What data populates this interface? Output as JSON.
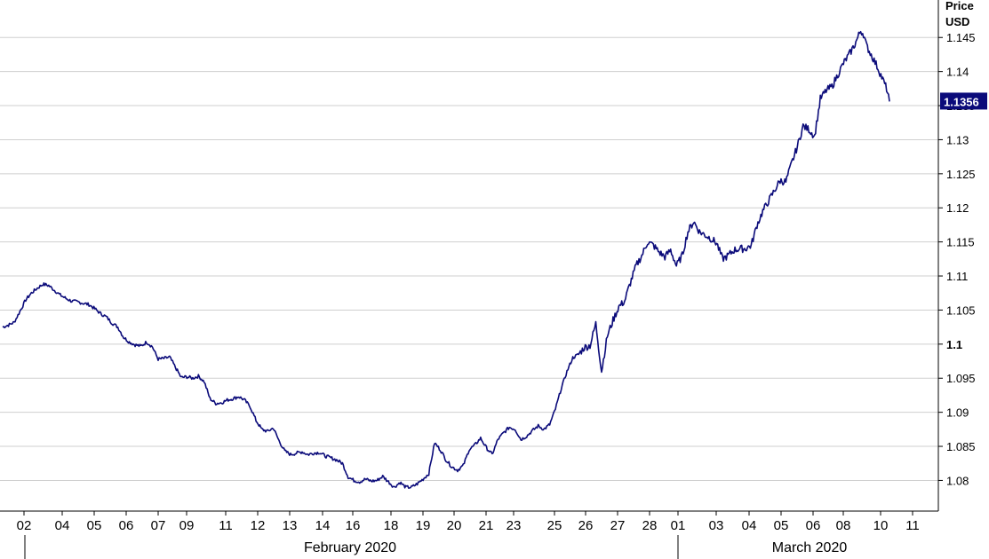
{
  "chart_data": {
    "type": "line",
    "ylabel_line1": "Price",
    "ylabel_line2": "USD",
    "ylim": [
      1.0755,
      1.1505
    ],
    "yticks": [
      {
        "value": 1.08,
        "label": "1.08",
        "bold": false
      },
      {
        "value": 1.085,
        "label": "1.085",
        "bold": false
      },
      {
        "value": 1.09,
        "label": "1.09",
        "bold": false
      },
      {
        "value": 1.095,
        "label": "1.095",
        "bold": false
      },
      {
        "value": 1.1,
        "label": "1.1",
        "bold": true
      },
      {
        "value": 1.105,
        "label": "1.105",
        "bold": false
      },
      {
        "value": 1.11,
        "label": "1.11",
        "bold": false
      },
      {
        "value": 1.115,
        "label": "1.115",
        "bold": false
      },
      {
        "value": 1.12,
        "label": "1.12",
        "bold": false
      },
      {
        "value": 1.125,
        "label": "1.125",
        "bold": false
      },
      {
        "value": 1.13,
        "label": "1.13",
        "bold": false
      },
      {
        "value": 1.135,
        "label": "1.135",
        "bold": false
      },
      {
        "value": 1.14,
        "label": "1.14",
        "bold": false
      },
      {
        "value": 1.145,
        "label": "1.145",
        "bold": false
      }
    ],
    "x_tick_labels": [
      "02",
      "04",
      "05",
      "06",
      "07",
      "09",
      "11",
      "12",
      "13",
      "14",
      "16",
      "18",
      "19",
      "20",
      "21",
      "23",
      "25",
      "26",
      "27",
      "28",
      "01",
      "03",
      "04",
      "05",
      "06",
      "08",
      "10",
      "11"
    ],
    "month_labels": [
      "February 2020",
      "March 2020"
    ],
    "last_value_label": "1.1356",
    "grid": true,
    "line_color": "#0b0b7a",
    "series": [
      {
        "values": [
          [
            0,
            1.1025
          ],
          [
            2,
            1.1028
          ],
          [
            4,
            1.1032
          ],
          [
            6,
            1.1048
          ],
          [
            8,
            1.1065
          ],
          [
            10,
            1.1075
          ],
          [
            12,
            1.1082
          ],
          [
            14,
            1.1088
          ],
          [
            16,
            1.1086
          ],
          [
            18,
            1.1079
          ],
          [
            20,
            1.1072
          ],
          [
            22,
            1.1067
          ],
          [
            24,
            1.1063
          ],
          [
            26,
            1.1062
          ],
          [
            28,
            1.106
          ],
          [
            30,
            1.1058
          ],
          [
            32,
            1.1052
          ],
          [
            34,
            1.1045
          ],
          [
            36,
            1.104
          ],
          [
            38,
            1.1031
          ],
          [
            40,
            1.1025
          ],
          [
            42,
            1.101
          ],
          [
            44,
            1.1003
          ],
          [
            46,
            1.0999
          ],
          [
            48,
            1.0997
          ],
          [
            50,
            1.1003
          ],
          [
            52,
            1.0996
          ],
          [
            54,
            1.0978
          ],
          [
            56,
            1.0979
          ],
          [
            58,
            1.0981
          ],
          [
            60,
            1.0966
          ],
          [
            62,
            1.0951
          ],
          [
            64,
            1.0952
          ],
          [
            66,
            1.095
          ],
          [
            68,
            1.0953
          ],
          [
            70,
            1.0945
          ],
          [
            72,
            1.092
          ],
          [
            74,
            1.0913
          ],
          [
            76,
            1.0914
          ],
          [
            78,
            1.0918
          ],
          [
            80,
            1.092
          ],
          [
            82,
            1.0923
          ],
          [
            84,
            1.0918
          ],
          [
            86,
            1.0908
          ],
          [
            88,
            1.0888
          ],
          [
            90,
            1.0875
          ],
          [
            92,
            1.0872
          ],
          [
            94,
            1.0877
          ],
          [
            96,
            1.0858
          ],
          [
            98,
            1.0843
          ],
          [
            100,
            1.0838
          ],
          [
            102,
            1.084
          ],
          [
            104,
            1.0842
          ],
          [
            106,
            1.0838
          ],
          [
            108,
            1.084
          ],
          [
            110,
            1.0841
          ],
          [
            112,
            1.0836
          ],
          [
            114,
            1.0833
          ],
          [
            116,
            1.083
          ],
          [
            118,
            1.0825
          ],
          [
            120,
            1.0805
          ],
          [
            122,
            1.08
          ],
          [
            124,
            1.0798
          ],
          [
            126,
            1.0802
          ],
          [
            128,
            1.0799
          ],
          [
            130,
            1.08
          ],
          [
            132,
            1.0806
          ],
          [
            134,
            1.0798
          ],
          [
            136,
            1.079
          ],
          [
            138,
            1.0797
          ],
          [
            140,
            1.079
          ],
          [
            142,
            1.079
          ],
          [
            144,
            1.0795
          ],
          [
            146,
            1.0802
          ],
          [
            148,
            1.081
          ],
          [
            150,
            1.0855
          ],
          [
            152,
            1.0845
          ],
          [
            154,
            1.083
          ],
          [
            156,
            1.082
          ],
          [
            158,
            1.0815
          ],
          [
            160,
            1.0822
          ],
          [
            162,
            1.0845
          ],
          [
            164,
            1.0852
          ],
          [
            166,
            1.0862
          ],
          [
            168,
            1.0848
          ],
          [
            170,
            1.0838
          ],
          [
            172,
            1.086
          ],
          [
            174,
            1.087
          ],
          [
            176,
            1.0878
          ],
          [
            178,
            1.0875
          ],
          [
            180,
            1.086
          ],
          [
            182,
            1.0865
          ],
          [
            184,
            1.0873
          ],
          [
            186,
            1.088
          ],
          [
            188,
            1.0875
          ],
          [
            190,
            1.0882
          ],
          [
            192,
            1.0905
          ],
          [
            194,
            1.0935
          ],
          [
            196,
            1.096
          ],
          [
            198,
            1.098
          ],
          [
            200,
            1.0985
          ],
          [
            202,
            1.0995
          ],
          [
            204,
            1.0998
          ],
          [
            206,
            1.103
          ],
          [
            208,
            1.096
          ],
          [
            210,
            1.1012
          ],
          [
            212,
            1.1035
          ],
          [
            214,
            1.1055
          ],
          [
            216,
            1.1063
          ],
          [
            218,
            1.109
          ],
          [
            220,
            1.1115
          ],
          [
            222,
            1.113
          ],
          [
            224,
            1.115
          ],
          [
            226,
            1.1145
          ],
          [
            228,
            1.1135
          ],
          [
            230,
            1.1128
          ],
          [
            232,
            1.1138
          ],
          [
            234,
            1.1115
          ],
          [
            236,
            1.113
          ],
          [
            238,
            1.1165
          ],
          [
            240,
            1.118
          ],
          [
            242,
            1.1165
          ],
          [
            244,
            1.116
          ],
          [
            246,
            1.1155
          ],
          [
            248,
            1.1148
          ],
          [
            250,
            1.1125
          ],
          [
            252,
            1.113
          ],
          [
            254,
            1.1138
          ],
          [
            256,
            1.114
          ],
          [
            258,
            1.114
          ],
          [
            260,
            1.1145
          ],
          [
            262,
            1.1175
          ],
          [
            264,
            1.1195
          ],
          [
            266,
            1.121
          ],
          [
            268,
            1.1225
          ],
          [
            270,
            1.124
          ],
          [
            272,
            1.1238
          ],
          [
            274,
            1.1265
          ],
          [
            276,
            1.129
          ],
          [
            278,
            1.132
          ],
          [
            280,
            1.1315
          ],
          [
            282,
            1.1305
          ],
          [
            284,
            1.136
          ],
          [
            286,
            1.1372
          ],
          [
            288,
            1.1378
          ],
          [
            290,
            1.1395
          ],
          [
            292,
            1.1412
          ],
          [
            294,
            1.1425
          ],
          [
            296,
            1.144
          ],
          [
            298,
            1.146
          ],
          [
            299,
            1.1455
          ],
          [
            300,
            1.1438
          ],
          [
            302,
            1.1422
          ],
          [
            304,
            1.1405
          ],
          [
            306,
            1.1385
          ],
          [
            307,
            1.1375
          ],
          [
            308,
            1.1356
          ]
        ]
      }
    ]
  }
}
